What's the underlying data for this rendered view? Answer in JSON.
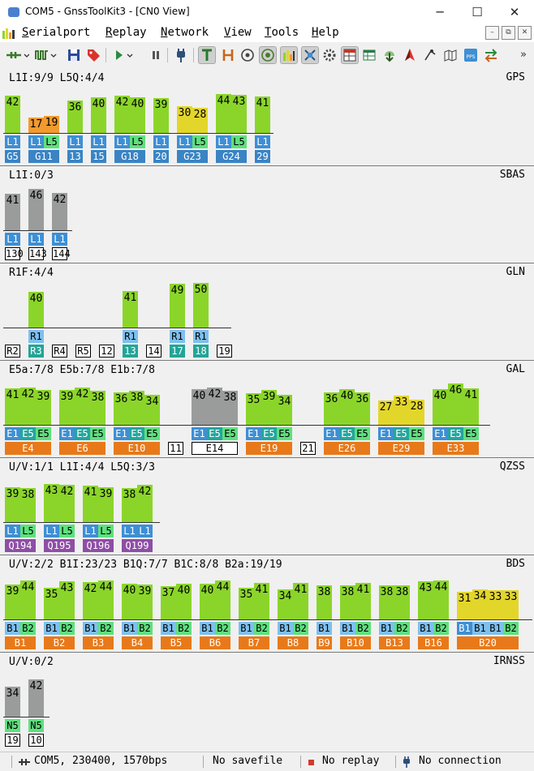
{
  "window": {
    "title": "COM5 - GnssToolKit3 - [CN0 View]",
    "minimize": "─",
    "maximize": "☐",
    "close": "✕"
  },
  "menu": {
    "items": [
      {
        "first": "S",
        "rest": "erialport"
      },
      {
        "first": "R",
        "rest": "eplay"
      },
      {
        "first": "N",
        "rest": "etwork"
      },
      {
        "first": "V",
        "rest": "iew"
      },
      {
        "first": "T",
        "rest": "ools"
      },
      {
        "first": "H",
        "rest": "elp"
      }
    ],
    "mdi": [
      "–",
      "⧉",
      "✕"
    ]
  },
  "toolbar": {
    "overflow": "»"
  },
  "colors": {
    "green": "#8bd52a",
    "yellow": "#e3d62b",
    "orange": "#f19a2e",
    "gray": "#9a9c9c",
    "blue": "#3e8fd4",
    "lightgreen": "#5ee07e",
    "teal": "#22a69e",
    "lightblue": "#7dc0ef",
    "satblue": "#3a84c4",
    "satorange": "#e8791a",
    "satpurple": "#8e4ea6",
    "satteal": "#23a497"
  },
  "panels": [
    {
      "name": "GPS",
      "label": "L1I:9/9 L5Q:4/4",
      "groups": [
        {
          "sat": "G5",
          "sat_color": "satblue",
          "bars": [
            {
              "cn0": 42,
              "sig": "L1",
              "color": "green",
              "sig_color": "blue"
            }
          ]
        },
        {
          "sat": "G11",
          "sat_color": "satblue",
          "bars": [
            {
              "cn0": 17,
              "sig": "L1",
              "color": "orange",
              "sig_color": "blue"
            },
            {
              "cn0": 19,
              "sig": "L5",
              "color": "orange",
              "sig_color": "lightgreen"
            }
          ]
        },
        {
          "sat": "13",
          "sat_color": "satblue",
          "bars": [
            {
              "cn0": 36,
              "sig": "L1",
              "color": "green",
              "sig_color": "blue"
            }
          ]
        },
        {
          "sat": "15",
          "sat_color": "satblue",
          "bars": [
            {
              "cn0": 40,
              "sig": "L1",
              "color": "green",
              "sig_color": "blue"
            }
          ]
        },
        {
          "sat": "G18",
          "sat_color": "satblue",
          "bars": [
            {
              "cn0": 42,
              "sig": "L1",
              "color": "green",
              "sig_color": "blue"
            },
            {
              "cn0": 40,
              "sig": "L5",
              "color": "green",
              "sig_color": "lightgreen"
            }
          ]
        },
        {
          "sat": "20",
          "sat_color": "satblue",
          "bars": [
            {
              "cn0": 39,
              "sig": "L1",
              "color": "green",
              "sig_color": "blue"
            }
          ]
        },
        {
          "sat": "G23",
          "sat_color": "satblue",
          "bars": [
            {
              "cn0": 30,
              "sig": "L1",
              "color": "yellow",
              "sig_color": "blue"
            },
            {
              "cn0": 28,
              "sig": "L5",
              "color": "yellow",
              "sig_color": "lightgreen"
            }
          ]
        },
        {
          "sat": "G24",
          "sat_color": "satblue",
          "bars": [
            {
              "cn0": 44,
              "sig": "L1",
              "color": "green",
              "sig_color": "blue"
            },
            {
              "cn0": 43,
              "sig": "L5",
              "color": "green",
              "sig_color": "lightgreen"
            }
          ]
        },
        {
          "sat": "29",
          "sat_color": "satblue",
          "bars": [
            {
              "cn0": 41,
              "sig": "L1",
              "color": "green",
              "sig_color": "blue"
            }
          ]
        }
      ]
    },
    {
      "name": "SBAS",
      "label": "L1I:0/3",
      "groups": [
        {
          "sat": "130",
          "sat_color": "box",
          "bars": [
            {
              "cn0": 41,
              "sig": "L1",
              "color": "gray",
              "sig_color": "blue"
            }
          ]
        },
        {
          "sat": "143",
          "sat_color": "box",
          "bars": [
            {
              "cn0": 46,
              "sig": "L1",
              "color": "gray",
              "sig_color": "blue"
            }
          ]
        },
        {
          "sat": "144",
          "sat_color": "box",
          "bars": [
            {
              "cn0": 42,
              "sig": "L1",
              "color": "gray",
              "sig_color": "blue"
            }
          ]
        }
      ]
    },
    {
      "name": "GLN",
      "label": "R1F:4/4",
      "groups": [
        {
          "sat": "R2",
          "sat_color": "box",
          "bars": []
        },
        {
          "sat": "R3",
          "sat_color": "satteal",
          "bars": [
            {
              "cn0": 40,
              "sig": "R1",
              "color": "green",
              "sig_color": "lightblue"
            }
          ]
        },
        {
          "sat": "R4",
          "sat_color": "box",
          "bars": []
        },
        {
          "sat": "R5",
          "sat_color": "box",
          "bars": []
        },
        {
          "sat": "12",
          "sat_color": "box",
          "bars": []
        },
        {
          "sat": "13",
          "sat_color": "satteal",
          "bars": [
            {
              "cn0": 41,
              "sig": "R1",
              "color": "green",
              "sig_color": "lightblue"
            }
          ]
        },
        {
          "sat": "14",
          "sat_color": "box",
          "bars": []
        },
        {
          "sat": "17",
          "sat_color": "satteal",
          "bars": [
            {
              "cn0": 49,
              "sig": "R1",
              "color": "green",
              "sig_color": "lightblue"
            }
          ]
        },
        {
          "sat": "18",
          "sat_color": "satteal",
          "bars": [
            {
              "cn0": 50,
              "sig": "R1",
              "color": "green",
              "sig_color": "lightblue"
            }
          ]
        },
        {
          "sat": "19",
          "sat_color": "box",
          "bars": []
        }
      ]
    },
    {
      "name": "GAL",
      "label": "E5a:7/8 E5b:7/8 E1b:7/8",
      "groups": [
        {
          "sat": "E4",
          "sat_color": "satorange",
          "bars": [
            {
              "cn0": 41,
              "sig": "E1",
              "color": "green",
              "sig_color": "blue"
            },
            {
              "cn0": 42,
              "sig": "E5",
              "color": "green",
              "sig_color": "teal"
            },
            {
              "cn0": 39,
              "sig": "E5",
              "color": "green",
              "sig_color": "lightgreen"
            }
          ]
        },
        {
          "sat": "E6",
          "sat_color": "satorange",
          "bars": [
            {
              "cn0": 39,
              "sig": "E1",
              "color": "green",
              "sig_color": "blue"
            },
            {
              "cn0": 42,
              "sig": "E5",
              "color": "green",
              "sig_color": "teal"
            },
            {
              "cn0": 38,
              "sig": "E5",
              "color": "green",
              "sig_color": "lightgreen"
            }
          ]
        },
        {
          "sat": "E10",
          "sat_color": "satorange",
          "bars": [
            {
              "cn0": 36,
              "sig": "E1",
              "color": "green",
              "sig_color": "blue"
            },
            {
              "cn0": 38,
              "sig": "E5",
              "color": "green",
              "sig_color": "teal"
            },
            {
              "cn0": 34,
              "sig": "E5",
              "color": "green",
              "sig_color": "lightgreen"
            }
          ]
        },
        {
          "sat": "11",
          "sat_color": "box",
          "bars": []
        },
        {
          "sat": "E14",
          "sat_color": "box",
          "bars": [
            {
              "cn0": 40,
              "sig": "E1",
              "color": "gray",
              "sig_color": "blue"
            },
            {
              "cn0": 42,
              "sig": "E5",
              "color": "gray",
              "sig_color": "teal"
            },
            {
              "cn0": 38,
              "sig": "E5",
              "color": "gray",
              "sig_color": "lightgreen"
            }
          ]
        },
        {
          "sat": "E19",
          "sat_color": "satorange",
          "bars": [
            {
              "cn0": 35,
              "sig": "E1",
              "color": "green",
              "sig_color": "blue"
            },
            {
              "cn0": 39,
              "sig": "E5",
              "color": "green",
              "sig_color": "teal"
            },
            {
              "cn0": 34,
              "sig": "E5",
              "color": "green",
              "sig_color": "lightgreen"
            }
          ]
        },
        {
          "sat": "21",
          "sat_color": "box",
          "bars": []
        },
        {
          "sat": "E26",
          "sat_color": "satorange",
          "bars": [
            {
              "cn0": 36,
              "sig": "E1",
              "color": "green",
              "sig_color": "blue"
            },
            {
              "cn0": 40,
              "sig": "E5",
              "color": "green",
              "sig_color": "teal"
            },
            {
              "cn0": 36,
              "sig": "E5",
              "color": "green",
              "sig_color": "lightgreen"
            }
          ]
        },
        {
          "sat": "E29",
          "sat_color": "satorange",
          "bars": [
            {
              "cn0": 27,
              "sig": "E1",
              "color": "yellow",
              "sig_color": "blue"
            },
            {
              "cn0": 33,
              "sig": "E5",
              "color": "yellow",
              "sig_color": "teal"
            },
            {
              "cn0": 28,
              "sig": "E5",
              "color": "yellow",
              "sig_color": "lightgreen"
            }
          ]
        },
        {
          "sat": "E33",
          "sat_color": "satorange",
          "bars": [
            {
              "cn0": 40,
              "sig": "E1",
              "color": "green",
              "sig_color": "blue"
            },
            {
              "cn0": 46,
              "sig": "E5",
              "color": "green",
              "sig_color": "teal"
            },
            {
              "cn0": 41,
              "sig": "E5",
              "color": "green",
              "sig_color": "lightgreen"
            }
          ]
        }
      ]
    },
    {
      "name": "QZSS",
      "label": "U/V:1/1 L1I:4/4 L5Q:3/3",
      "groups": [
        {
          "sat": "Q194",
          "sat_color": "satpurple",
          "bars": [
            {
              "cn0": 39,
              "sig": "L1",
              "color": "green",
              "sig_color": "blue"
            },
            {
              "cn0": 38,
              "sig": "L5",
              "color": "green",
              "sig_color": "lightgreen"
            }
          ]
        },
        {
          "sat": "Q195",
          "sat_color": "satpurple",
          "bars": [
            {
              "cn0": 43,
              "sig": "L1",
              "color": "green",
              "sig_color": "blue"
            },
            {
              "cn0": 42,
              "sig": "L5",
              "color": "green",
              "sig_color": "lightgreen"
            }
          ]
        },
        {
          "sat": "Q196",
          "sat_color": "satpurple",
          "bars": [
            {
              "cn0": 41,
              "sig": "L1",
              "color": "green",
              "sig_color": "blue"
            },
            {
              "cn0": 39,
              "sig": "L5",
              "color": "green",
              "sig_color": "lightgreen"
            }
          ]
        },
        {
          "sat": "Q199",
          "sat_color": "satpurple",
          "bars": [
            {
              "cn0": 38,
              "sig": "L1",
              "color": "green",
              "sig_color": "blue"
            },
            {
              "cn0": 42,
              "sig": "L1",
              "color": "green",
              "sig_color": "blue"
            }
          ]
        }
      ]
    },
    {
      "name": "BDS",
      "label": "U/V:2/2 B1I:23/23 B1Q:7/7 B1C:8/8 B2a:19/19",
      "groups": [
        {
          "sat": "B1",
          "sat_color": "satorange",
          "bars": [
            {
              "cn0": 39,
              "sig": "B1",
              "color": "green",
              "sig_color": "lightblue"
            },
            {
              "cn0": 44,
              "sig": "B2",
              "color": "green",
              "sig_color": "lightgreen"
            }
          ]
        },
        {
          "sat": "B2",
          "sat_color": "satorange",
          "bars": [
            {
              "cn0": 35,
              "sig": "B1",
              "color": "green",
              "sig_color": "lightblue"
            },
            {
              "cn0": 43,
              "sig": "B2",
              "color": "green",
              "sig_color": "lightgreen"
            }
          ]
        },
        {
          "sat": "B3",
          "sat_color": "satorange",
          "bars": [
            {
              "cn0": 42,
              "sig": "B1",
              "color": "green",
              "sig_color": "lightblue"
            },
            {
              "cn0": 44,
              "sig": "B2",
              "color": "green",
              "sig_color": "lightgreen"
            }
          ]
        },
        {
          "sat": "B4",
          "sat_color": "satorange",
          "bars": [
            {
              "cn0": 40,
              "sig": "B1",
              "color": "green",
              "sig_color": "lightblue"
            },
            {
              "cn0": 39,
              "sig": "B2",
              "color": "green",
              "sig_color": "lightgreen"
            }
          ]
        },
        {
          "sat": "B5",
          "sat_color": "satorange",
          "bars": [
            {
              "cn0": 37,
              "sig": "B1",
              "color": "green",
              "sig_color": "lightblue"
            },
            {
              "cn0": 40,
              "sig": "B2",
              "color": "green",
              "sig_color": "lightgreen"
            }
          ]
        },
        {
          "sat": "B6",
          "sat_color": "satorange",
          "bars": [
            {
              "cn0": 40,
              "sig": "B1",
              "color": "green",
              "sig_color": "lightblue"
            },
            {
              "cn0": 44,
              "sig": "B2",
              "color": "green",
              "sig_color": "lightgreen"
            }
          ]
        },
        {
          "sat": "B7",
          "sat_color": "satorange",
          "bars": [
            {
              "cn0": 35,
              "sig": "B1",
              "color": "green",
              "sig_color": "lightblue"
            },
            {
              "cn0": 41,
              "sig": "B2",
              "color": "green",
              "sig_color": "lightgreen"
            }
          ]
        },
        {
          "sat": "B8",
          "sat_color": "satorange",
          "bars": [
            {
              "cn0": 34,
              "sig": "B1",
              "color": "green",
              "sig_color": "lightblue"
            },
            {
              "cn0": 41,
              "sig": "B2",
              "color": "green",
              "sig_color": "lightgreen"
            }
          ]
        },
        {
          "sat": "B9",
          "sat_color": "satorange",
          "bars": [
            {
              "cn0": 38,
              "sig": "B1",
              "color": "green",
              "sig_color": "lightblue"
            }
          ]
        },
        {
          "sat": "B10",
          "sat_color": "satorange",
          "bars": [
            {
              "cn0": 38,
              "sig": "B1",
              "color": "green",
              "sig_color": "lightblue"
            },
            {
              "cn0": 41,
              "sig": "B2",
              "color": "green",
              "sig_color": "lightgreen"
            }
          ]
        },
        {
          "sat": "B13",
          "sat_color": "satorange",
          "bars": [
            {
              "cn0": 38,
              "sig": "B1",
              "color": "green",
              "sig_color": "lightblue"
            },
            {
              "cn0": 38,
              "sig": "B2",
              "color": "green",
              "sig_color": "lightgreen"
            }
          ]
        },
        {
          "sat": "B16",
          "sat_color": "satorange",
          "bars": [
            {
              "cn0": 43,
              "sig": "B1",
              "color": "green",
              "sig_color": "lightblue"
            },
            {
              "cn0": 44,
              "sig": "B2",
              "color": "green",
              "sig_color": "lightgreen"
            }
          ]
        },
        {
          "sat": "B20",
          "sat_color": "satorange",
          "bars": [
            {
              "cn0": 31,
              "sig": "B1",
              "color": "yellow",
              "sig_color": "blue"
            },
            {
              "cn0": 34,
              "sig": "B1",
              "color": "yellow",
              "sig_color": "lightblue"
            },
            {
              "cn0": 33,
              "sig": "B1",
              "color": "yellow",
              "sig_color": "lightblue"
            },
            {
              "cn0": 33,
              "sig": "B2",
              "color": "yellow",
              "sig_color": "lightgreen"
            }
          ]
        }
      ]
    },
    {
      "name": "IRNSS",
      "label": "U/V:0/2",
      "groups": [
        {
          "sat": "19",
          "sat_color": "box",
          "bars": [
            {
              "cn0": 34,
              "sig": "N5",
              "color": "gray",
              "sig_color": "lightgreen"
            }
          ]
        },
        {
          "sat": "10",
          "sat_color": "box",
          "bars": [
            {
              "cn0": 42,
              "sig": "N5",
              "color": "gray",
              "sig_color": "lightgreen"
            }
          ]
        }
      ]
    }
  ],
  "status": {
    "port": "COM5, 230400, 1570bps",
    "savefile": "No savefile",
    "replay": "No replay",
    "connection": "No connection"
  }
}
